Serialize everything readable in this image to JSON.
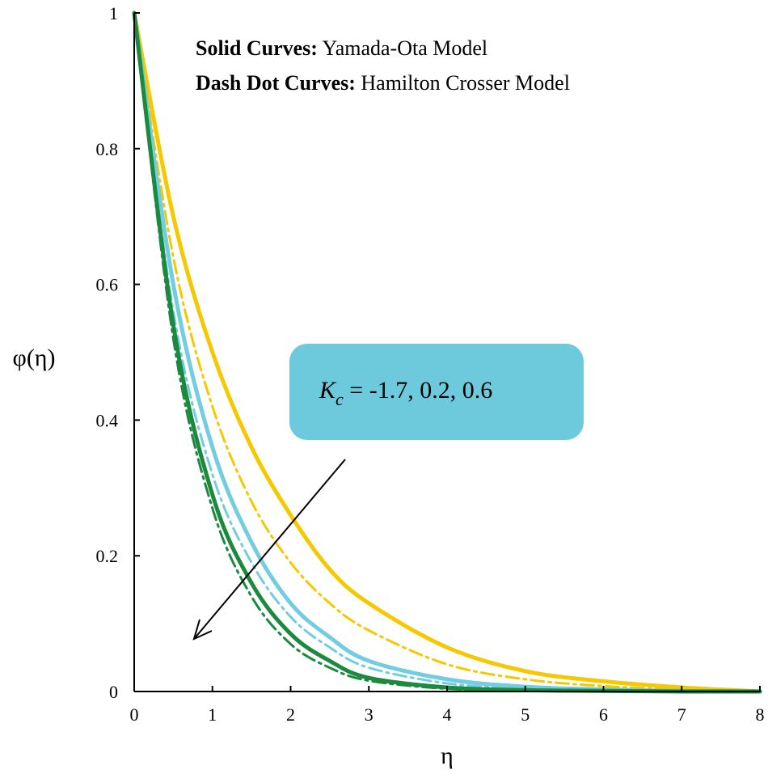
{
  "chart_data": {
    "type": "line",
    "title": "",
    "xlabel": "η",
    "ylabel": "φ(η)",
    "xlim": [
      0,
      8
    ],
    "ylim": [
      0,
      1
    ],
    "x_ticks": [
      "0",
      "1",
      "2",
      "3",
      "4",
      "5",
      "6",
      "7",
      "8"
    ],
    "y_ticks": [
      "0",
      "0.2",
      "0.4",
      "0.6",
      "0.8",
      "1"
    ],
    "grid": false,
    "legend_notes": [
      {
        "bold": "Solid Curves:",
        "text": "Yamada-Ota Model"
      },
      {
        "bold": "Dash Dot Curves:",
        "text": "Hamilton Crosser Model"
      }
    ],
    "annotation": {
      "label_main": "K",
      "label_sub": "c",
      "label_rest": " = -1.7, 0.2, 0.6",
      "box_color": "#6ccadc"
    },
    "colors": {
      "yellow": "#f5c800",
      "cyan": "#72cde0",
      "green": "#1b8a3e"
    },
    "series": [
      {
        "style": "solid",
        "color_key": "yellow",
        "x": [
          0,
          0.5,
          1,
          1.5,
          2,
          2.5,
          3,
          4,
          5,
          6,
          7,
          8
        ],
        "y": [
          1,
          0.7,
          0.5,
          0.36,
          0.26,
          0.18,
          0.13,
          0.065,
          0.03,
          0.015,
          0.006,
          0
        ]
      },
      {
        "style": "dashdot",
        "color_key": "yellow",
        "x": [
          0,
          0.5,
          1,
          1.5,
          2,
          2.5,
          3,
          4,
          5,
          6,
          7,
          8
        ],
        "y": [
          1,
          0.64,
          0.42,
          0.28,
          0.19,
          0.13,
          0.09,
          0.04,
          0.018,
          0.008,
          0.003,
          0
        ]
      },
      {
        "style": "solid",
        "color_key": "cyan",
        "x": [
          0,
          0.5,
          1,
          1.5,
          2,
          2.5,
          3,
          4,
          5,
          6,
          7,
          8
        ],
        "y": [
          1,
          0.6,
          0.36,
          0.22,
          0.13,
          0.08,
          0.045,
          0.018,
          0.007,
          0.003,
          0.001,
          0
        ]
      },
      {
        "style": "dashdot",
        "color_key": "cyan",
        "x": [
          0,
          0.5,
          1,
          1.5,
          2,
          2.5,
          3,
          4,
          5,
          6,
          7,
          8
        ],
        "y": [
          1,
          0.56,
          0.32,
          0.19,
          0.11,
          0.065,
          0.035,
          0.012,
          0.004,
          0.002,
          0.001,
          0
        ]
      },
      {
        "style": "solid",
        "color_key": "green",
        "x": [
          0,
          0.5,
          1,
          1.5,
          2,
          2.5,
          3,
          4,
          5,
          6,
          7,
          8
        ],
        "y": [
          1,
          0.54,
          0.29,
          0.16,
          0.085,
          0.045,
          0.02,
          0.006,
          0.002,
          0.001,
          0,
          0
        ]
      },
      {
        "style": "dashdot",
        "color_key": "green",
        "x": [
          0,
          0.5,
          1,
          1.5,
          2,
          2.5,
          3,
          4,
          5,
          6,
          7,
          8
        ],
        "y": [
          1,
          0.52,
          0.27,
          0.14,
          0.07,
          0.035,
          0.016,
          0.004,
          0.001,
          0,
          0,
          0
        ]
      }
    ]
  }
}
